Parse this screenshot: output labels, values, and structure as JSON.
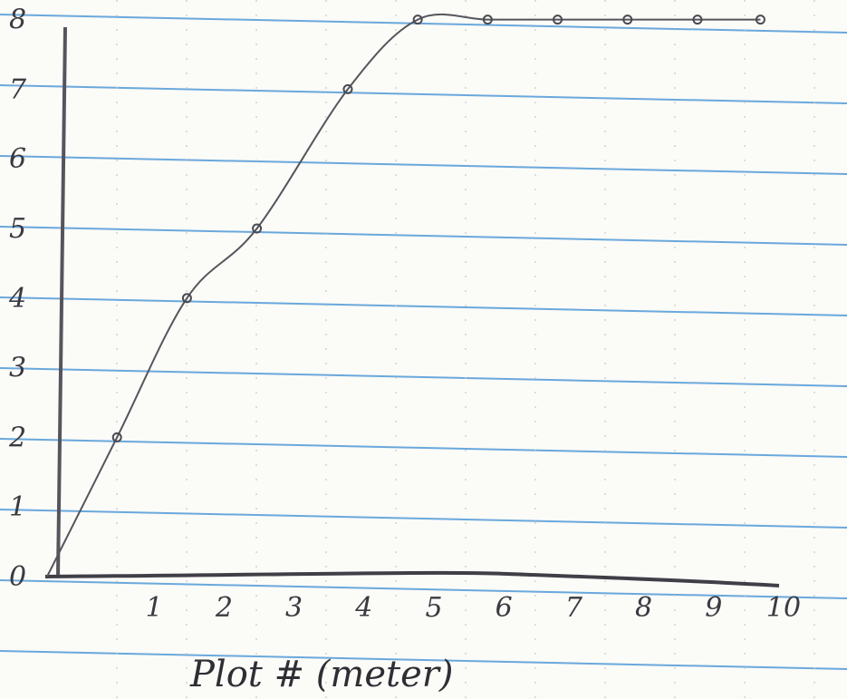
{
  "chart_data": {
    "type": "line",
    "title": "",
    "xlabel": "Plot # (meter)",
    "ylabel": "",
    "x": [
      1,
      2,
      3,
      4.3,
      5.3,
      6.3,
      7.3,
      8.3,
      9.3,
      10.2
    ],
    "y": [
      2,
      4,
      5,
      7,
      8,
      8,
      8,
      8,
      8,
      8
    ],
    "x_ticks": [
      "1",
      "2",
      "3",
      "4",
      "5",
      "6",
      "7",
      "8",
      "9",
      "10"
    ],
    "y_ticks": [
      "0",
      "1",
      "2",
      "3",
      "4",
      "5",
      "6",
      "7",
      "8"
    ],
    "xlim": [
      0,
      11
    ],
    "ylim": [
      0,
      8
    ],
    "grid": "ruled notebook lines",
    "colors": {
      "paper": "#fbfbf8",
      "rule": "#6aa8dc",
      "pencil": "#4a4a52"
    }
  }
}
